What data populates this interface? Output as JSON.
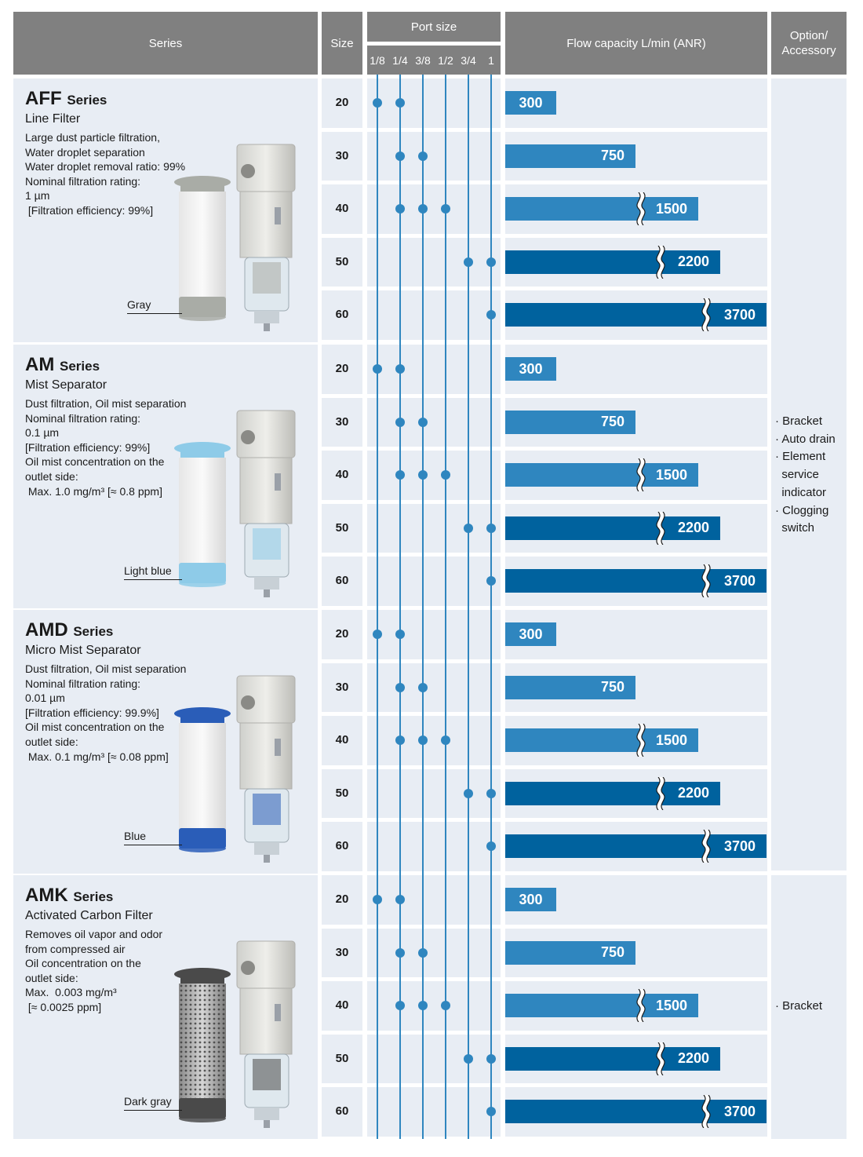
{
  "header": {
    "series": "Series",
    "size": "Size",
    "port_size": "Port size",
    "ports": [
      "1/8",
      "1/4",
      "3/8",
      "1/2",
      "3/4",
      "1"
    ],
    "flow": "Flow capacity L/min (ANR)",
    "option": "Option/\nAccessory"
  },
  "colors": {
    "header_gray": "#808080",
    "panel_bg": "#e8edf4",
    "line_blue": "#2f86bf",
    "bar_light": "#2f86bf",
    "bar_dark": "#00629e"
  },
  "chart_data": {
    "type": "bar",
    "title": "Flow capacity L/min (ANR)",
    "categories": [
      "20",
      "30",
      "40",
      "50",
      "60"
    ],
    "series": [
      {
        "name": "AFF Series",
        "values": [
          300,
          750,
          1500,
          2200,
          3700
        ]
      },
      {
        "name": "AM Series",
        "values": [
          300,
          750,
          1500,
          2200,
          3700
        ]
      },
      {
        "name": "AMD Series",
        "values": [
          300,
          750,
          1500,
          2200,
          3700
        ]
      },
      {
        "name": "AMK Series",
        "values": [
          300,
          750,
          1500,
          2200,
          3700
        ]
      }
    ]
  },
  "sizes": [
    "20",
    "30",
    "40",
    "50",
    "60"
  ],
  "port_availability": [
    [
      0,
      1
    ],
    [
      1,
      2
    ],
    [
      1,
      2,
      3
    ],
    [
      4,
      5
    ],
    [
      5
    ]
  ],
  "series": [
    {
      "name": "AFF",
      "suffix": "Series",
      "subtitle": "Line Filter",
      "desc": [
        "Large dust particle filtration,",
        "Water droplet separation",
        "Water droplet removal ratio: 99%",
        "Nominal filtration rating:",
        "1 µm",
        " [Filtration efficiency: 99%]"
      ],
      "element_label": "Gray",
      "element_color": "#a9aca6"
    },
    {
      "name": "AM",
      "suffix": "Series",
      "subtitle": "Mist Separator",
      "desc": [
        "Dust filtration, Oil mist separation",
        "Nominal filtration rating:",
        "0.1 µm",
        "[Filtration efficiency: 99%]",
        "Oil mist concentration on the",
        "outlet side:",
        " Max. 1.0 mg/m³ [≈ 0.8 ppm]"
      ],
      "element_label": "Light blue",
      "element_color": "#8ecbe8"
    },
    {
      "name": "AMD",
      "suffix": "Series",
      "subtitle": "Micro Mist Separator",
      "desc": [
        "Dust filtration, Oil mist separation",
        "Nominal filtration rating:",
        "0.01 µm",
        "[Filtration efficiency: 99.9%]",
        "Oil mist concentration on the",
        "outlet side:",
        " Max. 0.1 mg/m³ [≈ 0.08 ppm]"
      ],
      "element_label": "Blue",
      "element_color": "#2a5db8"
    },
    {
      "name": "AMK",
      "suffix": "Series",
      "subtitle": "Activated Carbon Filter",
      "desc": [
        "Removes oil vapor and odor",
        "from compressed air",
        "Oil concentration on the",
        "outlet side:",
        "Max.  0.003 mg/m³",
        " [≈ 0.0025 ppm]"
      ],
      "element_label": "Dark gray",
      "element_color": "#4a4a4a"
    }
  ],
  "options": {
    "group1": [
      "· Bracket",
      "· Auto drain",
      "· Element",
      "  service",
      "  indicator",
      "· Clogging",
      "  switch"
    ],
    "group2": [
      "· Bracket"
    ]
  }
}
